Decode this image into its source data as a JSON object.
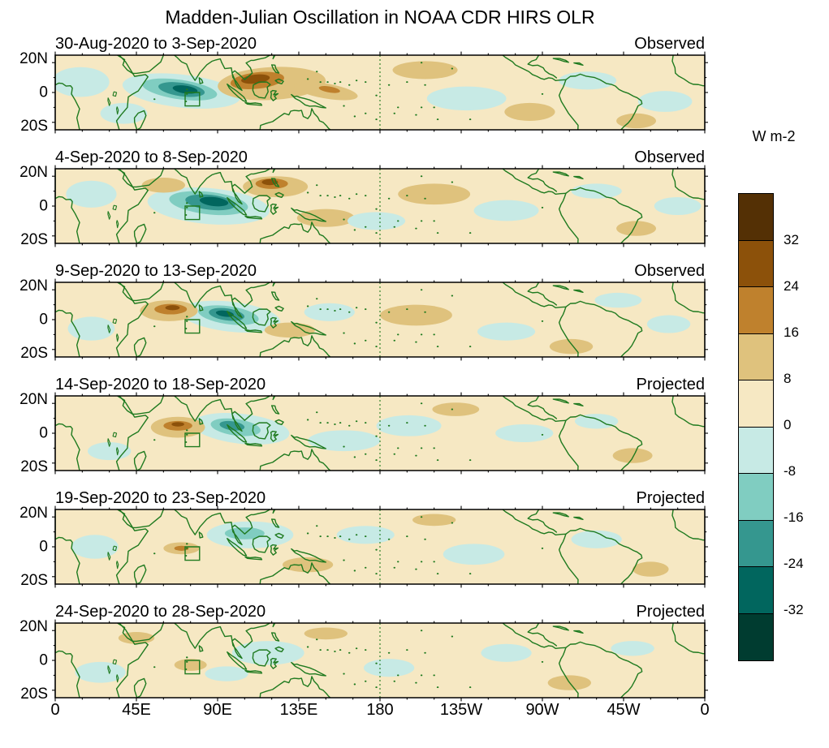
{
  "title": "Madden-Julian Oscillation in NOAA CDR HIRS OLR",
  "axes": {
    "x_tick_labels": [
      "0",
      "45E",
      "90E",
      "135E",
      "180",
      "135W",
      "90W",
      "45W",
      "0"
    ],
    "y_tick_labels": [
      "20N",
      "0",
      "20S"
    ]
  },
  "chart_data": {
    "type": "heatmap",
    "subtype": "filled-contour-longitude-latitude-map-panels",
    "units": "W m-2",
    "lon_range": [
      0,
      360
    ],
    "lat_range": [
      -25,
      25
    ],
    "contour_levels": [
      -32,
      -24,
      -16,
      -8,
      0,
      8,
      16,
      24,
      32
    ],
    "dateline_lon": 180,
    "highlight_box": {
      "lon_min": 72,
      "lon_max": 80,
      "lat_min": -9,
      "lat_max": 0
    },
    "map_outline_color": "#1f7a1f",
    "band_colors": {
      "32": "#543005",
      "24": "#8c510a",
      "16": "#bf812d",
      "8": "#dfc27d",
      "0": "#f6e8c3",
      "-8": "#c7eae5",
      "-16": "#80cdc1",
      "-24": "#35978f",
      "-32": "#01665e",
      "-40": "#003c30"
    },
    "colorbar": {
      "unit_label": "W m-2",
      "tick_labels": [
        "32",
        "24",
        "16",
        "8",
        "0",
        "-8",
        "-16",
        "-24",
        "-32"
      ],
      "colors_top_to_bottom": [
        "#543005",
        "#8c510a",
        "#bf812d",
        "#dfc27d",
        "#f6e8c3",
        "#c7eae5",
        "#80cdc1",
        "#35978f",
        "#01665e",
        "#003c30"
      ]
    },
    "panels": [
      {
        "title": "30-Aug-2020 to 3-Sep-2020",
        "status": "Observed",
        "anomalies": [
          {
            "lon": 14,
            "lat": 7,
            "rx": 16,
            "ry": 10,
            "rot": 0,
            "level": -8
          },
          {
            "lon": 38,
            "lat": -14,
            "rx": 13,
            "ry": 7,
            "rot": 0,
            "level": -8
          },
          {
            "lon": 70,
            "lat": 1,
            "rx": 33,
            "ry": 11,
            "rot": 8,
            "level": -8
          },
          {
            "lon": 69,
            "lat": 2,
            "rx": 21,
            "ry": 6.5,
            "rot": 10,
            "level": -16
          },
          {
            "lon": 70,
            "lat": 2,
            "rx": 13,
            "ry": 4.5,
            "rot": 10,
            "level": -24
          },
          {
            "lon": 72,
            "lat": 2,
            "rx": 7,
            "ry": 2.6,
            "rot": 10,
            "level": -32
          },
          {
            "lon": 120,
            "lat": 6,
            "rx": 30,
            "ry": 11,
            "rot": -4,
            "level": 8
          },
          {
            "lon": 112,
            "lat": 8,
            "rx": 15,
            "ry": 5.5,
            "rot": -8,
            "level": 16
          },
          {
            "lon": 111,
            "lat": 9,
            "rx": 8,
            "ry": 3,
            "rot": -8,
            "level": 24
          },
          {
            "lon": 150,
            "lat": 1,
            "rx": 18,
            "ry": 5,
            "rot": 12,
            "level": 8
          },
          {
            "lon": 152,
            "lat": 2,
            "rx": 6,
            "ry": 2,
            "rot": 12,
            "level": 16
          },
          {
            "lon": 205,
            "lat": 15,
            "rx": 18,
            "ry": 6,
            "rot": 0,
            "level": 8
          },
          {
            "lon": 228,
            "lat": -4,
            "rx": 22,
            "ry": 8,
            "rot": 0,
            "level": -8
          },
          {
            "lon": 295,
            "lat": 8,
            "rx": 16,
            "ry": 6,
            "rot": 0,
            "level": -8
          },
          {
            "lon": 263,
            "lat": -13,
            "rx": 14,
            "ry": 6,
            "rot": 0,
            "level": 8
          },
          {
            "lon": 322,
            "lat": -19,
            "rx": 11,
            "ry": 5,
            "rot": 0,
            "level": 8
          },
          {
            "lon": 338,
            "lat": -6,
            "rx": 15,
            "ry": 7,
            "rot": 0,
            "level": -8
          }
        ]
      },
      {
        "title": "4-Sep-2020 to 8-Sep-2020",
        "status": "Observed",
        "anomalies": [
          {
            "lon": 20,
            "lat": 8,
            "rx": 14,
            "ry": 9,
            "rot": 0,
            "level": -8
          },
          {
            "lon": 85,
            "lat": 0,
            "rx": 34,
            "ry": 12,
            "rot": 6,
            "level": -8
          },
          {
            "lon": 85,
            "lat": 2,
            "rx": 22,
            "ry": 7.5,
            "rot": 8,
            "level": -16
          },
          {
            "lon": 86,
            "lat": 2.5,
            "rx": 14,
            "ry": 5,
            "rot": 8,
            "level": -24
          },
          {
            "lon": 88,
            "lat": 3,
            "rx": 8,
            "ry": 3,
            "rot": 8,
            "level": -32
          },
          {
            "lon": 60,
            "lat": 14,
            "rx": 12,
            "ry": 5,
            "rot": 0,
            "level": 8
          },
          {
            "lon": 122,
            "lat": 13,
            "rx": 18,
            "ry": 7,
            "rot": 0,
            "level": 8
          },
          {
            "lon": 120,
            "lat": 15,
            "rx": 9,
            "ry": 3.5,
            "rot": 0,
            "level": 16
          },
          {
            "lon": 119,
            "lat": 16,
            "rx": 4.5,
            "ry": 2,
            "rot": 0,
            "level": 24
          },
          {
            "lon": 150,
            "lat": -8,
            "rx": 16,
            "ry": 6,
            "rot": 0,
            "level": 8
          },
          {
            "lon": 210,
            "lat": 8,
            "rx": 20,
            "ry": 7,
            "rot": 0,
            "level": 8
          },
          {
            "lon": 178,
            "lat": -10,
            "rx": 16,
            "ry": 6,
            "rot": 0,
            "level": -8
          },
          {
            "lon": 250,
            "lat": -3,
            "rx": 18,
            "ry": 7,
            "rot": 0,
            "level": -8
          },
          {
            "lon": 300,
            "lat": 10,
            "rx": 14,
            "ry": 5,
            "rot": 0,
            "level": -8
          },
          {
            "lon": 322,
            "lat": -15,
            "rx": 11,
            "ry": 5,
            "rot": 0,
            "level": 8
          },
          {
            "lon": 345,
            "lat": 0,
            "rx": 13,
            "ry": 6,
            "rot": 0,
            "level": -8
          }
        ]
      },
      {
        "title": "9-Sep-2020 to 13-Sep-2020",
        "status": "Observed",
        "anomalies": [
          {
            "lon": 20,
            "lat": -6,
            "rx": 13,
            "ry": 8,
            "rot": 0,
            "level": -8
          },
          {
            "lon": 97,
            "lat": 2,
            "rx": 28,
            "ry": 10,
            "rot": 8,
            "level": -8
          },
          {
            "lon": 96,
            "lat": 3,
            "rx": 17,
            "ry": 6,
            "rot": 10,
            "level": -16
          },
          {
            "lon": 95,
            "lat": 3.5,
            "rx": 10,
            "ry": 4,
            "rot": 10,
            "level": -24
          },
          {
            "lon": 94,
            "lat": 4,
            "rx": 5,
            "ry": 2,
            "rot": 10,
            "level": -32
          },
          {
            "lon": 63,
            "lat": 6,
            "rx": 16,
            "ry": 7,
            "rot": 0,
            "level": 8
          },
          {
            "lon": 64,
            "lat": 7,
            "rx": 9,
            "ry": 3.5,
            "rot": 0,
            "level": 16
          },
          {
            "lon": 65,
            "lat": 8,
            "rx": 4,
            "ry": 1.7,
            "rot": 0,
            "level": 24
          },
          {
            "lon": 130,
            "lat": -7,
            "rx": 14,
            "ry": 5,
            "rot": 0,
            "level": 8
          },
          {
            "lon": 152,
            "lat": 5,
            "rx": 14,
            "ry": 6,
            "rot": 0,
            "level": -8
          },
          {
            "lon": 200,
            "lat": 3,
            "rx": 20,
            "ry": 7,
            "rot": 0,
            "level": 8
          },
          {
            "lon": 250,
            "lat": -8,
            "rx": 16,
            "ry": 6,
            "rot": 0,
            "level": -8
          },
          {
            "lon": 312,
            "lat": 13,
            "rx": 13,
            "ry": 5,
            "rot": 0,
            "level": -8
          },
          {
            "lon": 286,
            "lat": -18,
            "rx": 12,
            "ry": 5,
            "rot": 0,
            "level": 8
          },
          {
            "lon": 340,
            "lat": -3,
            "rx": 12,
            "ry": 6,
            "rot": 0,
            "level": -8
          }
        ]
      },
      {
        "title": "14-Sep-2020 to 18-Sep-2020",
        "status": "Projected",
        "anomalies": [
          {
            "lon": 103,
            "lat": 3,
            "rx": 27,
            "ry": 10,
            "rot": 8,
            "level": -8
          },
          {
            "lon": 100,
            "lat": 4,
            "rx": 14,
            "ry": 5.5,
            "rot": 10,
            "level": -16
          },
          {
            "lon": 98,
            "lat": 5,
            "rx": 7,
            "ry": 3,
            "rot": 10,
            "level": -24
          },
          {
            "lon": 68,
            "lat": 4,
            "rx": 15,
            "ry": 7,
            "rot": 0,
            "level": 8
          },
          {
            "lon": 68,
            "lat": 5,
            "rx": 8,
            "ry": 3.2,
            "rot": 0,
            "level": 16
          },
          {
            "lon": 68,
            "lat": 6,
            "rx": 3.5,
            "ry": 1.5,
            "rot": 0,
            "level": 24
          },
          {
            "lon": 160,
            "lat": -5,
            "rx": 20,
            "ry": 7,
            "rot": 0,
            "level": -8
          },
          {
            "lon": 196,
            "lat": 5,
            "rx": 18,
            "ry": 7,
            "rot": 0,
            "level": -8
          },
          {
            "lon": 222,
            "lat": 16,
            "rx": 13,
            "ry": 4.5,
            "rot": 0,
            "level": 8
          },
          {
            "lon": 260,
            "lat": 0,
            "rx": 16,
            "ry": 6,
            "rot": 0,
            "level": -8
          },
          {
            "lon": 300,
            "lat": 8,
            "rx": 12,
            "ry": 5,
            "rot": 0,
            "level": -8
          },
          {
            "lon": 320,
            "lat": -15,
            "rx": 11,
            "ry": 5,
            "rot": 0,
            "level": 8
          },
          {
            "lon": 30,
            "lat": -12,
            "rx": 12,
            "ry": 6,
            "rot": 0,
            "level": -8
          }
        ]
      },
      {
        "title": "19-Sep-2020 to 23-Sep-2020",
        "status": "Projected",
        "anomalies": [
          {
            "lon": 22,
            "lat": 0,
            "rx": 13,
            "ry": 8,
            "rot": 0,
            "level": -8
          },
          {
            "lon": 108,
            "lat": 8,
            "rx": 24,
            "ry": 9,
            "rot": 0,
            "level": -8
          },
          {
            "lon": 105,
            "lat": 9,
            "rx": 11,
            "ry": 4,
            "rot": 0,
            "level": -16
          },
          {
            "lon": 70,
            "lat": -1,
            "rx": 10,
            "ry": 4,
            "rot": 0,
            "level": 8
          },
          {
            "lon": 70,
            "lat": -1,
            "rx": 4,
            "ry": 1.7,
            "rot": 0,
            "level": 16
          },
          {
            "lon": 140,
            "lat": -12,
            "rx": 14,
            "ry": 5,
            "rot": 0,
            "level": 8
          },
          {
            "lon": 172,
            "lat": 8,
            "rx": 16,
            "ry": 6,
            "rot": 0,
            "level": -8
          },
          {
            "lon": 210,
            "lat": 18,
            "rx": 12,
            "ry": 4,
            "rot": 0,
            "level": 8
          },
          {
            "lon": 232,
            "lat": -5,
            "rx": 17,
            "ry": 7,
            "rot": 0,
            "level": -8
          },
          {
            "lon": 300,
            "lat": 5,
            "rx": 14,
            "ry": 6,
            "rot": 0,
            "level": -8
          },
          {
            "lon": 330,
            "lat": -15,
            "rx": 10,
            "ry": 5,
            "rot": 0,
            "level": 8
          }
        ]
      },
      {
        "title": "24-Sep-2020 to 28-Sep-2020",
        "status": "Projected",
        "anomalies": [
          {
            "lon": 25,
            "lat": -8,
            "rx": 14,
            "ry": 7,
            "rot": 0,
            "level": -8
          },
          {
            "lon": 45,
            "lat": 15,
            "rx": 10,
            "ry": 4,
            "rot": 0,
            "level": 8
          },
          {
            "lon": 75,
            "lat": -3,
            "rx": 9,
            "ry": 4,
            "rot": 0,
            "level": 8
          },
          {
            "lon": 118,
            "lat": 5,
            "rx": 20,
            "ry": 8,
            "rot": 0,
            "level": -8
          },
          {
            "lon": 95,
            "lat": -9,
            "rx": 12,
            "ry": 5,
            "rot": 0,
            "level": -8
          },
          {
            "lon": 150,
            "lat": 18,
            "rx": 12,
            "ry": 4,
            "rot": 0,
            "level": 8
          },
          {
            "lon": 185,
            "lat": -5,
            "rx": 14,
            "ry": 6,
            "rot": 0,
            "level": -8
          },
          {
            "lon": 250,
            "lat": 5,
            "rx": 14,
            "ry": 6,
            "rot": 0,
            "level": -8
          },
          {
            "lon": 285,
            "lat": -15,
            "rx": 12,
            "ry": 5,
            "rot": 0,
            "level": 8
          },
          {
            "lon": 320,
            "lat": 8,
            "rx": 12,
            "ry": 5,
            "rot": 0,
            "level": -8
          }
        ]
      }
    ]
  }
}
